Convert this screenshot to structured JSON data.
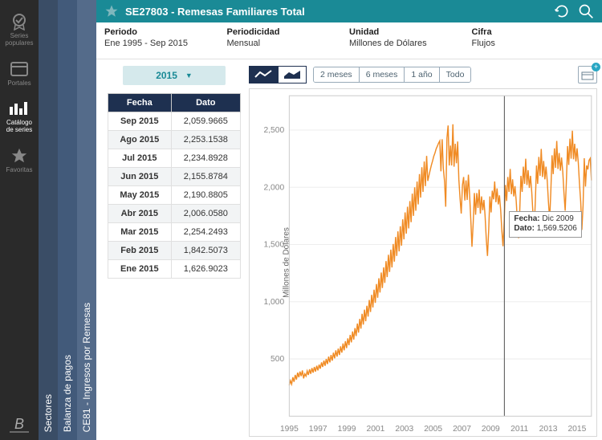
{
  "sidebar_icons": [
    {
      "name": "series-populares",
      "label": "Series\npopulares",
      "active": false
    },
    {
      "name": "portales",
      "label": "Portales",
      "active": false
    },
    {
      "name": "catalogo",
      "label": "Catálogo\nde series",
      "active": true
    },
    {
      "name": "favoritas",
      "label": "Favoritas",
      "active": false
    }
  ],
  "rails": {
    "r1": "Sectores",
    "r2": "Balanza de pagos",
    "r3": "CE81 - Ingresos por Remesas"
  },
  "header": {
    "code": "SE27803",
    "title": "SE27803 - Remesas Familiares Total"
  },
  "meta": {
    "periodo_label": "Periodo",
    "periodo_value": "Ene 1995 - Sep 2015",
    "periodicidad_label": "Periodicidad",
    "periodicidad_value": "Mensual",
    "unidad_label": "Unidad",
    "unidad_value": "Millones de Dólares",
    "cifra_label": "Cifra",
    "cifra_value": "Flujos"
  },
  "year_selector": "2015",
  "table": {
    "col_fecha": "Fecha",
    "col_dato": "Dato",
    "rows": [
      {
        "fecha": "Sep 2015",
        "dato": "2,059.9665"
      },
      {
        "fecha": "Ago 2015",
        "dato": "2,253.1538"
      },
      {
        "fecha": "Jul 2015",
        "dato": "2,234.8928"
      },
      {
        "fecha": "Jun 2015",
        "dato": "2,155.8784"
      },
      {
        "fecha": "May 2015",
        "dato": "2,190.8805"
      },
      {
        "fecha": "Abr 2015",
        "dato": "2,006.0580"
      },
      {
        "fecha": "Mar 2015",
        "dato": "2,254.2493"
      },
      {
        "fecha": "Feb 2015",
        "dato": "1,842.5073"
      },
      {
        "fecha": "Ene 2015",
        "dato": "1,626.9023"
      }
    ]
  },
  "ranges": {
    "r0": "2 meses",
    "r1": "6 meses",
    "r2": "1 año",
    "r3": "Todo"
  },
  "chart": {
    "type": "line",
    "ylabel": "Millones de Dólares",
    "series_color": "#f08b24",
    "background_color": "#ffffff",
    "grid_color": "#eeeeee",
    "axis_color": "#cccccc",
    "line_width": 1.4,
    "ylim": [
      0,
      2800
    ],
    "yticks": [
      500,
      1000,
      1500,
      2000,
      2500
    ],
    "xlim": [
      1995,
      2016
    ],
    "xticks": [
      1995,
      1997,
      1999,
      2001,
      2003,
      2005,
      2007,
      2009,
      2011,
      2013,
      2015
    ],
    "cursor_x": 2009.95,
    "tooltip": {
      "fecha_lbl": "Fecha:",
      "fecha": "Dic 2009",
      "dato_lbl": "Dato:",
      "dato": "1,569.5206"
    },
    "values": [
      270,
      310,
      280,
      340,
      300,
      360,
      320,
      380,
      340,
      390,
      350,
      400,
      330,
      370,
      350,
      395,
      360,
      410,
      370,
      420,
      380,
      430,
      390,
      440,
      400,
      450,
      415,
      470,
      430,
      485,
      440,
      500,
      455,
      520,
      470,
      535,
      485,
      555,
      505,
      575,
      520,
      590,
      535,
      610,
      555,
      635,
      575,
      655,
      595,
      680,
      620,
      710,
      645,
      740,
      670,
      770,
      700,
      810,
      730,
      850,
      765,
      895,
      800,
      930,
      830,
      965,
      870,
      1015,
      910,
      1060,
      950,
      1105,
      990,
      1155,
      1035,
      1205,
      1080,
      1255,
      1120,
      1300,
      1165,
      1355,
      1215,
      1410,
      1260,
      1455,
      1300,
      1505,
      1350,
      1565,
      1400,
      1615,
      1440,
      1660,
      1490,
      1720,
      1545,
      1780,
      1595,
      1830,
      1640,
      1880,
      1695,
      1945,
      1750,
      2000,
      1795,
      2050,
      1850,
      2115,
      1910,
      2175,
      1960,
      2225,
      2010,
      2275,
      2055,
      2105,
      2150,
      2195,
      2230,
      2270,
      2300,
      2335,
      2360,
      2385,
      2405,
      2140,
      2420,
      2165,
      2050,
      1830,
      2430,
      2540,
      2190,
      2365,
      2190,
      2550,
      2180,
      2380,
      2210,
      2400,
      2070,
      1900,
      1770,
      2020,
      2090,
      1885,
      2060,
      1890,
      2110,
      1940,
      1715,
      1480,
      1689,
      1950,
      1760,
      1950,
      1820,
      1980,
      1770,
      1920,
      1800,
      1890,
      1750,
      1540,
      1400,
      1630,
      1920,
      1780,
      1970,
      1895,
      2050,
      1870,
      1990,
      1850,
      1930,
      1800,
      1620,
      1485,
      1710,
      2020,
      1880,
      2090,
      1960,
      2160,
      1940,
      2070,
      1920,
      2010,
      1880,
      1700,
      1555,
      1800,
      2100,
      1960,
      2180,
      2030,
      2250,
      2020,
      2150,
      1995,
      2100,
      1960,
      1780,
      1625,
      1870,
      2190,
      2030,
      2265,
      2100,
      2335,
      2090,
      2230,
      2070,
      2180,
      2055,
      1875,
      1715,
      1960,
      2280,
      2115,
      2340,
      2170,
      2405,
      2160,
      2300,
      2145,
      2260,
      2135,
      1955,
      1795,
      2040,
      2360,
      2195,
      2425,
      2250,
      2495,
      2245,
      2380,
      2225,
      2340,
      2215,
      2035,
      1875,
      1627,
      1843,
      2254,
      2006,
      2191,
      2156,
      2235,
      2253,
      2060
    ]
  }
}
